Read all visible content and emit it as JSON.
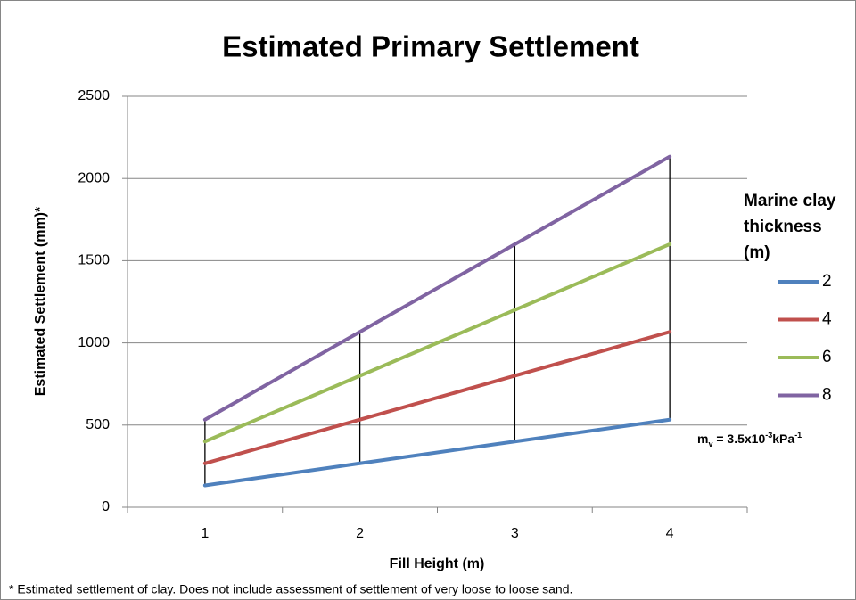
{
  "chart_data": {
    "type": "line",
    "title": "Estimated Primary Settlement",
    "x_label": "Fill Height (m)",
    "y_label": "Estimated Settlement (mm)*",
    "categories": [
      "1",
      "2",
      "3",
      "4"
    ],
    "series": [
      {
        "name": "2",
        "color": "#4f81bd",
        "values": [
          133,
          267,
          400,
          533
        ]
      },
      {
        "name": "4",
        "color": "#c0504d",
        "values": [
          267,
          533,
          800,
          1067
        ]
      },
      {
        "name": "6",
        "color": "#9bbb59",
        "values": [
          400,
          800,
          1200,
          1600
        ]
      },
      {
        "name": "8",
        "color": "#8064a2",
        "values": [
          533,
          1067,
          1600,
          2133
        ]
      }
    ],
    "high_low_lines": true,
    "ylim": [
      0,
      2500
    ],
    "yticks": [
      0,
      500,
      1000,
      1500,
      2000,
      2500
    ],
    "grid": true,
    "legend_position": "right",
    "legend_title_lines": [
      "Marine clay",
      "thickness",
      "(m)"
    ],
    "annotation": [
      {
        "text": "m",
        "script": "normal"
      },
      {
        "text": "v",
        "script": "sub"
      },
      {
        "text": " = 3.5x10",
        "script": "normal"
      },
      {
        "text": "-3",
        "script": "super"
      },
      {
        "text": "kPa",
        "script": "normal"
      },
      {
        "text": "-1",
        "script": "super"
      }
    ],
    "footnote": "* Estimated settlement of clay.  Does not include assessment of settlement of very loose to loose sand."
  }
}
